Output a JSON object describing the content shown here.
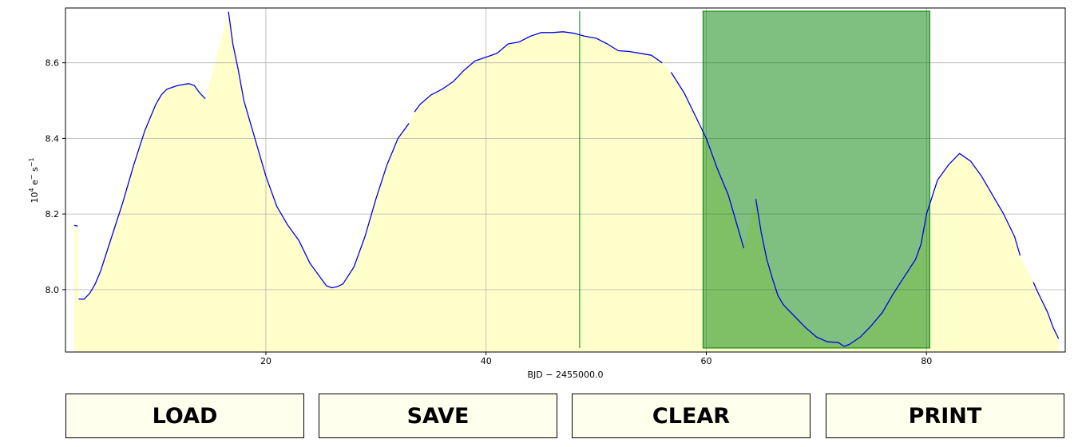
{
  "chart_data": {
    "type": "line",
    "xlabel": "BJD − 2455000.0",
    "ylabel_base": "10",
    "ylabel_exp": "4",
    "ylabel_rest": " e",
    "ylabel_sup1": "−",
    "ylabel_mid": " s",
    "ylabel_sup2": "−1",
    "xlim": [
      1.8,
      92.6
    ],
    "ylim": [
      7.835,
      8.745
    ],
    "xticks": [
      20,
      40,
      60,
      80
    ],
    "yticks": [
      8.0,
      8.2,
      8.4,
      8.6
    ],
    "xtick_labels": [
      "20",
      "40",
      "60",
      "80"
    ],
    "ytick_labels": [
      "8.0",
      "8.2",
      "8.4",
      "8.6"
    ],
    "grid": true,
    "colors": {
      "line": "#0000ee",
      "fill": "#ffffcc",
      "selection": "#008000",
      "selection_line": "#008000",
      "grid": "#b0b0b0"
    },
    "selection_region": [
      59.7,
      80.3
    ],
    "marker_line_x": 48.5,
    "series": [
      {
        "segments": [
          [
            [
              2.6,
              8.17
            ],
            [
              2.9,
              8.168
            ]
          ],
          [
            [
              3.0,
              7.975
            ],
            [
              3.5,
              7.975
            ],
            [
              4.0,
              7.99
            ],
            [
              4.5,
              8.015
            ],
            [
              5.0,
              8.05
            ],
            [
              6.0,
              8.14
            ],
            [
              7.0,
              8.23
            ],
            [
              8.0,
              8.33
            ],
            [
              9.0,
              8.42
            ],
            [
              10.0,
              8.49
            ],
            [
              10.5,
              8.515
            ],
            [
              11.0,
              8.53
            ],
            [
              12.0,
              8.54
            ],
            [
              13.0,
              8.545
            ],
            [
              13.5,
              8.54
            ],
            [
              14.0,
              8.52
            ],
            [
              14.5,
              8.505
            ]
          ],
          [
            [
              16.6,
              8.735
            ],
            [
              17.0,
              8.65
            ],
            [
              17.5,
              8.58
            ],
            [
              18.0,
              8.5
            ],
            [
              19.0,
              8.4
            ],
            [
              20.0,
              8.3
            ],
            [
              21.0,
              8.22
            ],
            [
              22.0,
              8.17
            ],
            [
              23.0,
              8.13
            ],
            [
              24.0,
              8.07
            ],
            [
              25.0,
              8.03
            ],
            [
              25.5,
              8.01
            ],
            [
              26.0,
              8.005
            ],
            [
              26.5,
              8.008
            ],
            [
              27.0,
              8.015
            ],
            [
              28.0,
              8.06
            ],
            [
              29.0,
              8.14
            ],
            [
              30.0,
              8.24
            ],
            [
              31.0,
              8.33
            ],
            [
              32.0,
              8.4
            ],
            [
              33.0,
              8.44
            ]
          ],
          [
            [
              33.5,
              8.47
            ],
            [
              34.0,
              8.49
            ],
            [
              35.0,
              8.515
            ],
            [
              36.0,
              8.53
            ],
            [
              37.0,
              8.55
            ],
            [
              38.0,
              8.58
            ],
            [
              39.0,
              8.605
            ],
            [
              40.0,
              8.615
            ],
            [
              41.0,
              8.625
            ],
            [
              42.0,
              8.65
            ],
            [
              43.0,
              8.655
            ],
            [
              44.0,
              8.67
            ],
            [
              45.0,
              8.68
            ],
            [
              46.0,
              8.68
            ],
            [
              47.0,
              8.682
            ],
            [
              48.0,
              8.678
            ],
            [
              49.0,
              8.67
            ],
            [
              50.0,
              8.665
            ],
            [
              51.0,
              8.65
            ],
            [
              52.0,
              8.632
            ],
            [
              53.0,
              8.63
            ],
            [
              54.0,
              8.625
            ],
            [
              55.0,
              8.62
            ],
            [
              56.0,
              8.6
            ]
          ],
          [
            [
              56.8,
              8.575
            ],
            [
              58.0,
              8.52
            ],
            [
              59.0,
              8.46
            ],
            [
              60.0,
              8.4
            ],
            [
              61.0,
              8.32
            ],
            [
              62.0,
              8.25
            ],
            [
              63.0,
              8.15
            ],
            [
              63.4,
              8.11
            ]
          ],
          [
            [
              64.5,
              8.24
            ],
            [
              65.0,
              8.15
            ],
            [
              65.5,
              8.08
            ],
            [
              66.0,
              8.03
            ],
            [
              66.5,
              7.985
            ],
            [
              67.0,
              7.96
            ],
            [
              68.0,
              7.93
            ],
            [
              69.0,
              7.9
            ],
            [
              70.0,
              7.875
            ],
            [
              71.0,
              7.862
            ],
            [
              72.0,
              7.86
            ],
            [
              72.5,
              7.85
            ],
            [
              73.0,
              7.855
            ],
            [
              74.0,
              7.875
            ],
            [
              75.0,
              7.905
            ],
            [
              76.0,
              7.94
            ],
            [
              77.0,
              7.99
            ],
            [
              78.0,
              8.035
            ],
            [
              79.0,
              8.08
            ],
            [
              79.5,
              8.12
            ],
            [
              80.0,
              8.2
            ],
            [
              81.0,
              8.29
            ],
            [
              82.0,
              8.33
            ],
            [
              83.0,
              8.36
            ],
            [
              84.0,
              8.34
            ],
            [
              85.0,
              8.3
            ],
            [
              86.0,
              8.25
            ],
            [
              87.0,
              8.2
            ],
            [
              88.0,
              8.14
            ],
            [
              88.5,
              8.09
            ]
          ],
          [
            [
              89.7,
              8.02
            ],
            [
              90.0,
              8.0
            ],
            [
              90.5,
              7.97
            ],
            [
              91.0,
              7.94
            ],
            [
              91.5,
              7.9
            ],
            [
              92.0,
              7.87
            ]
          ]
        ]
      }
    ]
  },
  "buttons": {
    "load": "LOAD",
    "save": "SAVE",
    "clear": "CLEAR",
    "print": "PRINT"
  }
}
